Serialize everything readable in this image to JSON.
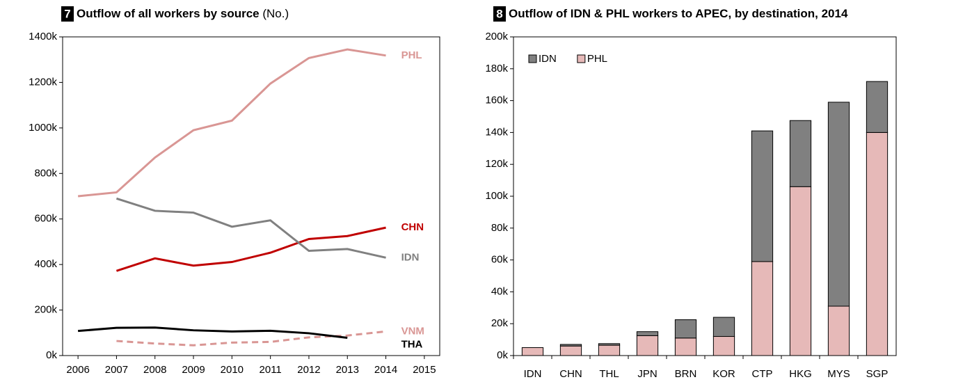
{
  "chart_data": [
    {
      "type": "line",
      "number": "7",
      "title": "Outflow of all workers by source",
      "unit": "(No.)",
      "x": [
        2006,
        2007,
        2008,
        2009,
        2010,
        2011,
        2012,
        2013,
        2014
      ],
      "series": [
        {
          "name": "PHL",
          "color": "#d99694",
          "dashed": false,
          "values": [
            700000,
            717000,
            870000,
            990000,
            1032000,
            1195000,
            1307000,
            1345000,
            1318000
          ]
        },
        {
          "name": "CHN",
          "color": "#c00000",
          "dashed": false,
          "values": [
            null,
            372000,
            427000,
            395000,
            411000,
            452000,
            512000,
            525000,
            562000
          ]
        },
        {
          "name": "IDN",
          "color": "#808080",
          "dashed": false,
          "values": [
            null,
            690000,
            636000,
            628000,
            566000,
            594000,
            460000,
            468000,
            430000
          ]
        },
        {
          "name": "VNM",
          "color": "#d99694",
          "dashed": true,
          "values": [
            null,
            64000,
            53000,
            45000,
            57000,
            60000,
            80000,
            88000,
            106000
          ]
        },
        {
          "name": "THA",
          "color": "#000000",
          "dashed": false,
          "values": [
            108000,
            122000,
            123000,
            111000,
            106000,
            109000,
            98000,
            78000,
            null
          ]
        }
      ],
      "xlim": [
        2005.6,
        2015.4
      ],
      "xticks": [
        2006,
        2007,
        2008,
        2009,
        2010,
        2011,
        2012,
        2013,
        2014,
        2015
      ],
      "ylim": [
        0,
        1400000
      ],
      "yticks": [
        {
          "value": 0,
          "label": "0k"
        },
        {
          "value": 200000,
          "label": "200k"
        },
        {
          "value": 400000,
          "label": "400k"
        },
        {
          "value": 600000,
          "label": "600k"
        },
        {
          "value": 800000,
          "label": "800k"
        },
        {
          "value": 1000000,
          "label": "1000k"
        },
        {
          "value": 1200000,
          "label": "1200k"
        },
        {
          "value": 1400000,
          "label": "1400k"
        }
      ],
      "grid": false
    },
    {
      "type": "bar",
      "number": "8",
      "title": "Outflow of IDN & PHL workers to APEC, by destination, 2014",
      "stacked": true,
      "categories": [
        "IDN",
        "CHN",
        "THL",
        "JPN",
        "BRN",
        "KOR",
        "CTP",
        "HKG",
        "MYS",
        "SGP"
      ],
      "series": [
        {
          "name": "IDN",
          "color": "#808080",
          "values": [
            0,
            1000,
            1000,
            2500,
            11500,
            12000,
            82000,
            41500,
            128000,
            32000
          ]
        },
        {
          "name": "PHL",
          "color": "#e6b9b8",
          "values": [
            5000,
            6000,
            6500,
            12500,
            11000,
            12000,
            59000,
            106000,
            31000,
            140000
          ]
        }
      ],
      "ylim": [
        0,
        200000
      ],
      "yticks": [
        {
          "value": 0,
          "label": "0k"
        },
        {
          "value": 20000,
          "label": "20k"
        },
        {
          "value": 40000,
          "label": "40k"
        },
        {
          "value": 60000,
          "label": "60k"
        },
        {
          "value": 80000,
          "label": "80k"
        },
        {
          "value": 100000,
          "label": "100k"
        },
        {
          "value": 120000,
          "label": "120k"
        },
        {
          "value": 140000,
          "label": "140k"
        },
        {
          "value": 160000,
          "label": "160k"
        },
        {
          "value": 180000,
          "label": "180k"
        },
        {
          "value": 200000,
          "label": "200k"
        }
      ],
      "legend": "top-left",
      "grid": false
    }
  ]
}
